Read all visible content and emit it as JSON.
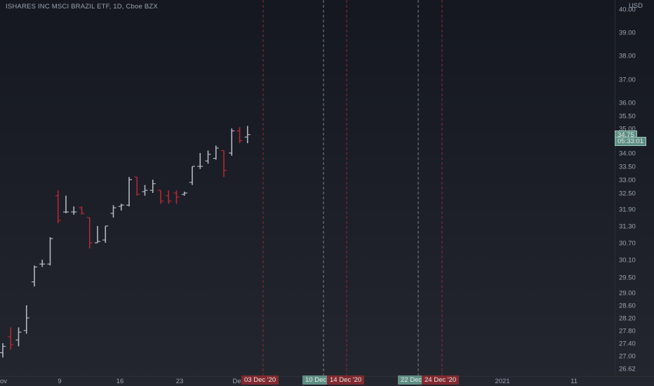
{
  "chart_data": {
    "type": "ohlc",
    "title": "ISHARES INC MSCI BRAZIL ETF, 1D, Cboe BZX",
    "currency": "USD",
    "colors": {
      "up": "#b2b5be",
      "down": "#b22833",
      "tag_red": "#802a2f",
      "tag_green": "#5e8f84",
      "axis_text": "#9aa4b2"
    },
    "price_axis": {
      "ticks": [
        "40.00",
        "39.00",
        "38.00",
        "37.00",
        "36.00",
        "35.50",
        "35.00",
        "34.00",
        "33.50",
        "33.00",
        "32.50",
        "31.90",
        "31.30",
        "30.70",
        "30.10",
        "29.50",
        "29.00",
        "28.60",
        "28.20",
        "27.80",
        "27.40",
        "27.00",
        "26.62"
      ]
    },
    "time_axis": {
      "labels": [
        "ov",
        "9",
        "16",
        "23",
        "Dec",
        "2021",
        "11"
      ]
    },
    "bars": [
      {
        "o": 27.1,
        "h": 27.4,
        "l": 26.95,
        "c": 27.3
      },
      {
        "o": 27.6,
        "h": 27.9,
        "l": 27.2,
        "c": 27.35
      },
      {
        "o": 27.5,
        "h": 27.9,
        "l": 27.3,
        "c": 27.75
      },
      {
        "o": 27.8,
        "h": 28.6,
        "l": 27.7,
        "c": 28.2
      },
      {
        "o": 29.35,
        "h": 29.9,
        "l": 29.2,
        "c": 29.85
      },
      {
        "o": 29.95,
        "h": 30.1,
        "l": 29.85,
        "c": 29.95
      },
      {
        "o": 29.95,
        "h": 30.9,
        "l": 29.9,
        "c": 30.85
      },
      {
        "o": 32.4,
        "h": 32.6,
        "l": 31.4,
        "c": 31.5
      },
      {
        "o": 31.8,
        "h": 32.4,
        "l": 31.75,
        "c": 31.8
      },
      {
        "o": 31.8,
        "h": 32.0,
        "l": 31.7,
        "c": 31.8
      },
      {
        "o": 31.95,
        "h": 32.0,
        "l": 31.7,
        "c": 31.75
      },
      {
        "o": 31.6,
        "h": 31.6,
        "l": 30.5,
        "c": 30.7
      },
      {
        "o": 30.7,
        "h": 31.3,
        "l": 30.7,
        "c": 30.75
      },
      {
        "o": 30.8,
        "h": 31.3,
        "l": 30.7,
        "c": 31.3
      },
      {
        "o": 31.75,
        "h": 32.05,
        "l": 31.6,
        "c": 31.95
      },
      {
        "o": 32.0,
        "h": 32.1,
        "l": 31.85,
        "c": 32.05
      },
      {
        "o": 32.05,
        "h": 33.1,
        "l": 32.0,
        "c": 33.0
      },
      {
        "o": 33.1,
        "h": 33.1,
        "l": 32.4,
        "c": 32.45
      },
      {
        "o": 32.55,
        "h": 32.8,
        "l": 32.4,
        "c": 32.6
      },
      {
        "o": 32.6,
        "h": 33.0,
        "l": 32.5,
        "c": 32.85
      },
      {
        "o": 32.6,
        "h": 32.6,
        "l": 32.1,
        "c": 32.2
      },
      {
        "o": 32.4,
        "h": 32.6,
        "l": 32.1,
        "c": 32.2
      },
      {
        "o": 32.5,
        "h": 32.6,
        "l": 32.1,
        "c": 32.35
      },
      {
        "o": 32.45,
        "h": 32.55,
        "l": 32.4,
        "c": 32.5
      },
      {
        "o": 32.9,
        "h": 33.5,
        "l": 32.8,
        "c": 33.5
      },
      {
        "o": 33.5,
        "h": 34.0,
        "l": 33.4,
        "c": 33.5
      },
      {
        "o": 33.7,
        "h": 34.1,
        "l": 33.6,
        "c": 33.95
      },
      {
        "o": 33.8,
        "h": 34.3,
        "l": 33.75,
        "c": 34.2
      },
      {
        "o": 34.1,
        "h": 34.1,
        "l": 33.1,
        "c": 33.35
      },
      {
        "o": 34.0,
        "h": 35.0,
        "l": 33.9,
        "c": 34.9
      },
      {
        "o": 34.9,
        "h": 35.05,
        "l": 34.4,
        "c": 34.5
      },
      {
        "o": 34.65,
        "h": 35.1,
        "l": 34.4,
        "c": 34.75
      }
    ],
    "price_tags": [
      {
        "label": "34.75",
        "value": 34.75
      },
      {
        "label": "05:33:01",
        "value": 34.5
      }
    ],
    "vertical_lines": [
      {
        "style": "red",
        "label": "03 Dec '20",
        "date": "2020-12-03"
      },
      {
        "style": "white",
        "label": "10 Dec",
        "date": "2020-12-10"
      },
      {
        "style": "red",
        "label": "14 Dec '20",
        "date": "2020-12-14"
      },
      {
        "style": "white",
        "label": "22 Dec",
        "date": "2020-12-22"
      },
      {
        "style": "red",
        "label": "24 Dec '20",
        "date": "2020-12-24"
      }
    ]
  }
}
